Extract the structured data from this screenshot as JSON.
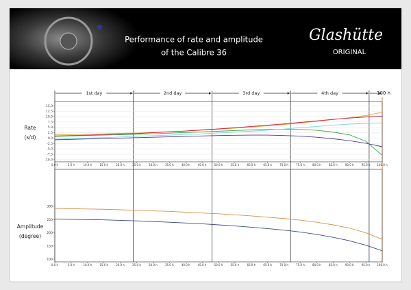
{
  "header": {
    "title": [
      "Performance of rate and amplitude",
      "of the Calibre 36"
    ],
    "logo": "Glashütte",
    "logo_sub": "ORIGINAL"
  },
  "timeline": {
    "days": [
      "1st day",
      "2nd day",
      "3rd day",
      "4th day"
    ],
    "boundaries": [
      0,
      24,
      48,
      72,
      96
    ],
    "end_label": "100 h"
  },
  "chart_data": [
    {
      "type": "line",
      "ylabel": [
        "Rate",
        "(s/d)"
      ],
      "x": [
        0,
        5,
        10,
        15,
        20,
        25,
        30,
        35,
        40,
        45,
        50,
        55,
        60,
        65,
        70,
        75,
        80,
        85,
        90,
        95,
        100
      ],
      "xlim": [
        0,
        100
      ],
      "xticks": [
        {
          "value": 0,
          "label": "0.0 h"
        },
        {
          "value": 5,
          "label": "5.0 h"
        },
        {
          "value": 10,
          "label": "10.0 h"
        },
        {
          "value": 15,
          "label": "15.0 h"
        },
        {
          "value": 20,
          "label": "20.0 h"
        },
        {
          "value": 25,
          "label": "25.0 h"
        },
        {
          "value": 30,
          "label": "30.0 h"
        },
        {
          "value": 35,
          "label": "35.0 h"
        },
        {
          "value": 40,
          "label": "40.0 h"
        },
        {
          "value": 45,
          "label": "45.0 h"
        },
        {
          "value": 50,
          "label": "50.0 h"
        },
        {
          "value": 55,
          "label": "55.0 h"
        },
        {
          "value": 60,
          "label": "60.0 h"
        },
        {
          "value": 65,
          "label": "65.0 h"
        },
        {
          "value": 70,
          "label": "70.0 h"
        },
        {
          "value": 75,
          "label": "75.0 h"
        },
        {
          "value": 80,
          "label": "80.0 h"
        },
        {
          "value": 85,
          "label": "85.0 h"
        },
        {
          "value": 90,
          "label": "90.0 h"
        },
        {
          "value": 95,
          "label": "95.0 h"
        },
        {
          "value": 100,
          "label": "100.0 h"
        }
      ],
      "ylim": [
        -11,
        17
      ],
      "yticks": [
        {
          "value": -10,
          "label": "-10.0"
        },
        {
          "value": -7.5,
          "label": "-7.5"
        },
        {
          "value": -5,
          "label": "-5.0"
        },
        {
          "value": -2.5,
          "label": "-2.5"
        },
        {
          "value": 0,
          "label": "0.0"
        },
        {
          "value": 2.5,
          "label": "2.5"
        },
        {
          "value": 5,
          "label": "5.0"
        },
        {
          "value": 7.5,
          "label": "7.5"
        },
        {
          "value": 10,
          "label": "10.0"
        },
        {
          "value": 12.5,
          "label": "12.5"
        },
        {
          "value": 15,
          "label": "15.0"
        }
      ],
      "grid": true,
      "series": [
        {
          "color": "#e8a040",
          "values": [
            1.5,
            1.6,
            1.8,
            2.0,
            2.2,
            2.4,
            2.7,
            3.0,
            3.3,
            3.7,
            4.1,
            4.6,
            5.1,
            5.7,
            6.3,
            7.0,
            7.8,
            8.6,
            9.5,
            10.5,
            12.0
          ]
        },
        {
          "color": "#c8203c",
          "values": [
            1.0,
            1.2,
            1.4,
            1.6,
            1.9,
            2.1,
            2.5,
            2.9,
            3.3,
            3.8,
            4.3,
            4.8,
            5.4,
            6.0,
            6.6,
            7.3,
            8.0,
            8.7,
            9.3,
            9.8,
            10.2
          ]
        },
        {
          "color": "#3aa84a",
          "values": [
            0.8,
            1.0,
            1.2,
            1.4,
            1.6,
            1.8,
            2.0,
            2.3,
            2.6,
            2.9,
            3.2,
            3.5,
            3.8,
            4.0,
            4.1,
            4.0,
            3.6,
            2.8,
            1.5,
            -1.5,
            -8.0
          ]
        },
        {
          "color": "#7fd0dc",
          "values": [
            -0.5,
            -0.3,
            0.0,
            0.2,
            0.5,
            0.8,
            1.1,
            1.4,
            1.7,
            2.0,
            2.4,
            2.8,
            3.2,
            3.7,
            4.2,
            4.8,
            5.4,
            6.0,
            6.5,
            6.8,
            7.0
          ]
        },
        {
          "color": "#4a3a90",
          "values": [
            -0.8,
            -0.6,
            -0.4,
            -0.2,
            0.0,
            0.2,
            0.4,
            0.6,
            0.8,
            1.0,
            1.2,
            1.3,
            1.4,
            1.4,
            1.2,
            0.9,
            0.4,
            -0.3,
            -1.2,
            -2.4,
            -4.0
          ]
        }
      ]
    },
    {
      "type": "line",
      "ylabel": [
        "Amplitude",
        "(degree)"
      ],
      "x": [
        0,
        5,
        10,
        15,
        20,
        25,
        30,
        35,
        40,
        45,
        50,
        55,
        60,
        65,
        70,
        75,
        80,
        85,
        90,
        95,
        100
      ],
      "xlim": [
        0,
        100
      ],
      "xticks": [
        {
          "value": 0,
          "label": "0.0 h"
        },
        {
          "value": 5,
          "label": "5.0 h"
        },
        {
          "value": 10,
          "label": "10.0 h"
        },
        {
          "value": 15,
          "label": "15.0 h"
        },
        {
          "value": 20,
          "label": "20.0 h"
        },
        {
          "value": 25,
          "label": "25.0 h"
        },
        {
          "value": 30,
          "label": "30.0 h"
        },
        {
          "value": 35,
          "label": "35.0 h"
        },
        {
          "value": 40,
          "label": "40.0 h"
        },
        {
          "value": 45,
          "label": "45.0 h"
        },
        {
          "value": 50,
          "label": "50.0 h"
        },
        {
          "value": 55,
          "label": "55.0 h"
        },
        {
          "value": 60,
          "label": "60.0 h"
        },
        {
          "value": 65,
          "label": "65.0 h"
        },
        {
          "value": 70,
          "label": "70.0 h"
        },
        {
          "value": 75,
          "label": "75.0 h"
        },
        {
          "value": 80,
          "label": "80.0 h"
        },
        {
          "value": 85,
          "label": "85.0 h"
        },
        {
          "value": 90,
          "label": "90.0 h"
        },
        {
          "value": 95,
          "label": "95.0 h"
        },
        {
          "value": 100,
          "label": "100.0 h"
        }
      ],
      "ylim": [
        90,
        440
      ],
      "yticks": [
        100,
        150,
        200,
        250,
        300
      ],
      "grid": false,
      "series": [
        {
          "color": "#d89048",
          "values": [
            292,
            291,
            290,
            289,
            287,
            285,
            283,
            281,
            278,
            275,
            272,
            268,
            264,
            259,
            254,
            248,
            240,
            230,
            218,
            200,
            175
          ]
        },
        {
          "color": "#3a4a80",
          "values": [
            252,
            251,
            250,
            249,
            247,
            245,
            243,
            240,
            237,
            234,
            230,
            226,
            221,
            216,
            210,
            203,
            194,
            183,
            170,
            153,
            132
          ]
        }
      ]
    }
  ]
}
